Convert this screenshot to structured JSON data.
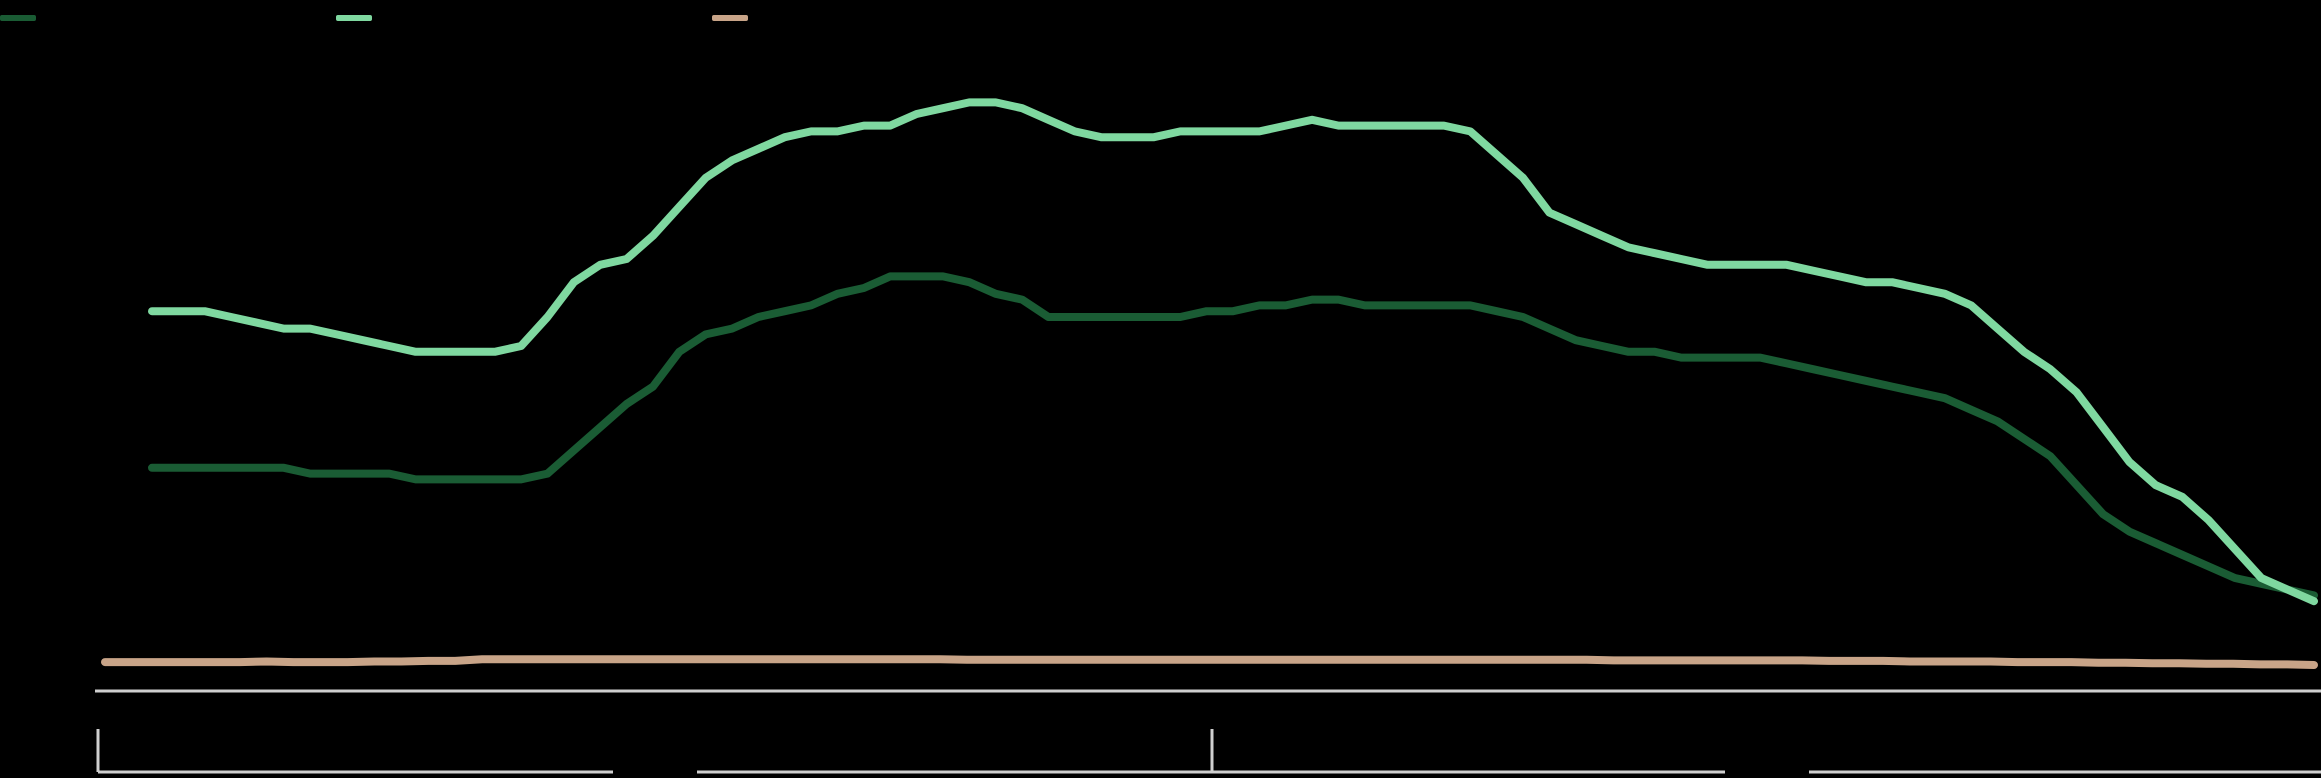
{
  "chart_data": {
    "type": "line",
    "title": "",
    "xlabel": "",
    "ylabel": "",
    "ylim": [
      0,
      100
    ],
    "yticks": [
      "",
      "",
      "",
      "",
      "",
      "",
      ""
    ],
    "years": [
      "",
      ""
    ],
    "end_labels": [
      "",
      "",
      ""
    ],
    "legend_position": "top-left",
    "grid": false,
    "series": [
      {
        "name": "",
        "color": "#1a5c34",
        "values": [
          34,
          34,
          34,
          34,
          34,
          34,
          33,
          33,
          33,
          33,
          32,
          32,
          32,
          32,
          32,
          33,
          37,
          41,
          45,
          48,
          54,
          57,
          58,
          60,
          61,
          62,
          64,
          65,
          67,
          67,
          67,
          66,
          64,
          63,
          60,
          60,
          60,
          60,
          60,
          60,
          61,
          61,
          62,
          62,
          63,
          63,
          62,
          62,
          62,
          62,
          62,
          61,
          60,
          58,
          56,
          55,
          54,
          54,
          53,
          53,
          53,
          53,
          52,
          51,
          50,
          49,
          48,
          47,
          46,
          44,
          42,
          39,
          36,
          31,
          26,
          23,
          21,
          19,
          17,
          15,
          14,
          13,
          12
        ]
      },
      {
        "name": "",
        "color": "#7fd8a0",
        "values": [
          61,
          61,
          61,
          60,
          59,
          58,
          58,
          57,
          56,
          55,
          54,
          54,
          54,
          54,
          55,
          60,
          66,
          69,
          70,
          74,
          79,
          84,
          87,
          89,
          91,
          92,
          92,
          93,
          93,
          95,
          96,
          97,
          97,
          96,
          94,
          92,
          91,
          91,
          91,
          92,
          92,
          92,
          92,
          93,
          94,
          93,
          93,
          93,
          93,
          93,
          92,
          88,
          84,
          78,
          76,
          74,
          72,
          71,
          70,
          69,
          69,
          69,
          69,
          68,
          67,
          66,
          66,
          65,
          64,
          62,
          58,
          54,
          51,
          47,
          41,
          35,
          31,
          29,
          25,
          20,
          15,
          13,
          11
        ]
      },
      {
        "name": "",
        "color": "#c8a488",
        "values": [
          0.5,
          0.5,
          0.5,
          0.5,
          0.5,
          0.5,
          0.6,
          0.5,
          0.5,
          0.5,
          0.6,
          0.6,
          0.7,
          0.7,
          1.0,
          1.0,
          1.0,
          1.0,
          1.0,
          1.0,
          1.0,
          1.0,
          1.0,
          1.0,
          1.0,
          1.0,
          1.0,
          1.0,
          1.0,
          1.0,
          1.0,
          1.0,
          0.9,
          0.9,
          0.9,
          0.9,
          0.9,
          0.9,
          0.9,
          0.9,
          0.9,
          0.9,
          0.9,
          0.9,
          0.9,
          0.9,
          0.9,
          0.9,
          0.9,
          0.9,
          0.9,
          0.9,
          0.9,
          0.9,
          0.9,
          0.9,
          0.8,
          0.8,
          0.8,
          0.8,
          0.8,
          0.8,
          0.8,
          0.8,
          0.7,
          0.7,
          0.7,
          0.6,
          0.6,
          0.6,
          0.6,
          0.5,
          0.5,
          0.5,
          0.4,
          0.4,
          0.3,
          0.3,
          0.2,
          0.2,
          0.1,
          0.1,
          0.0
        ]
      }
    ]
  }
}
